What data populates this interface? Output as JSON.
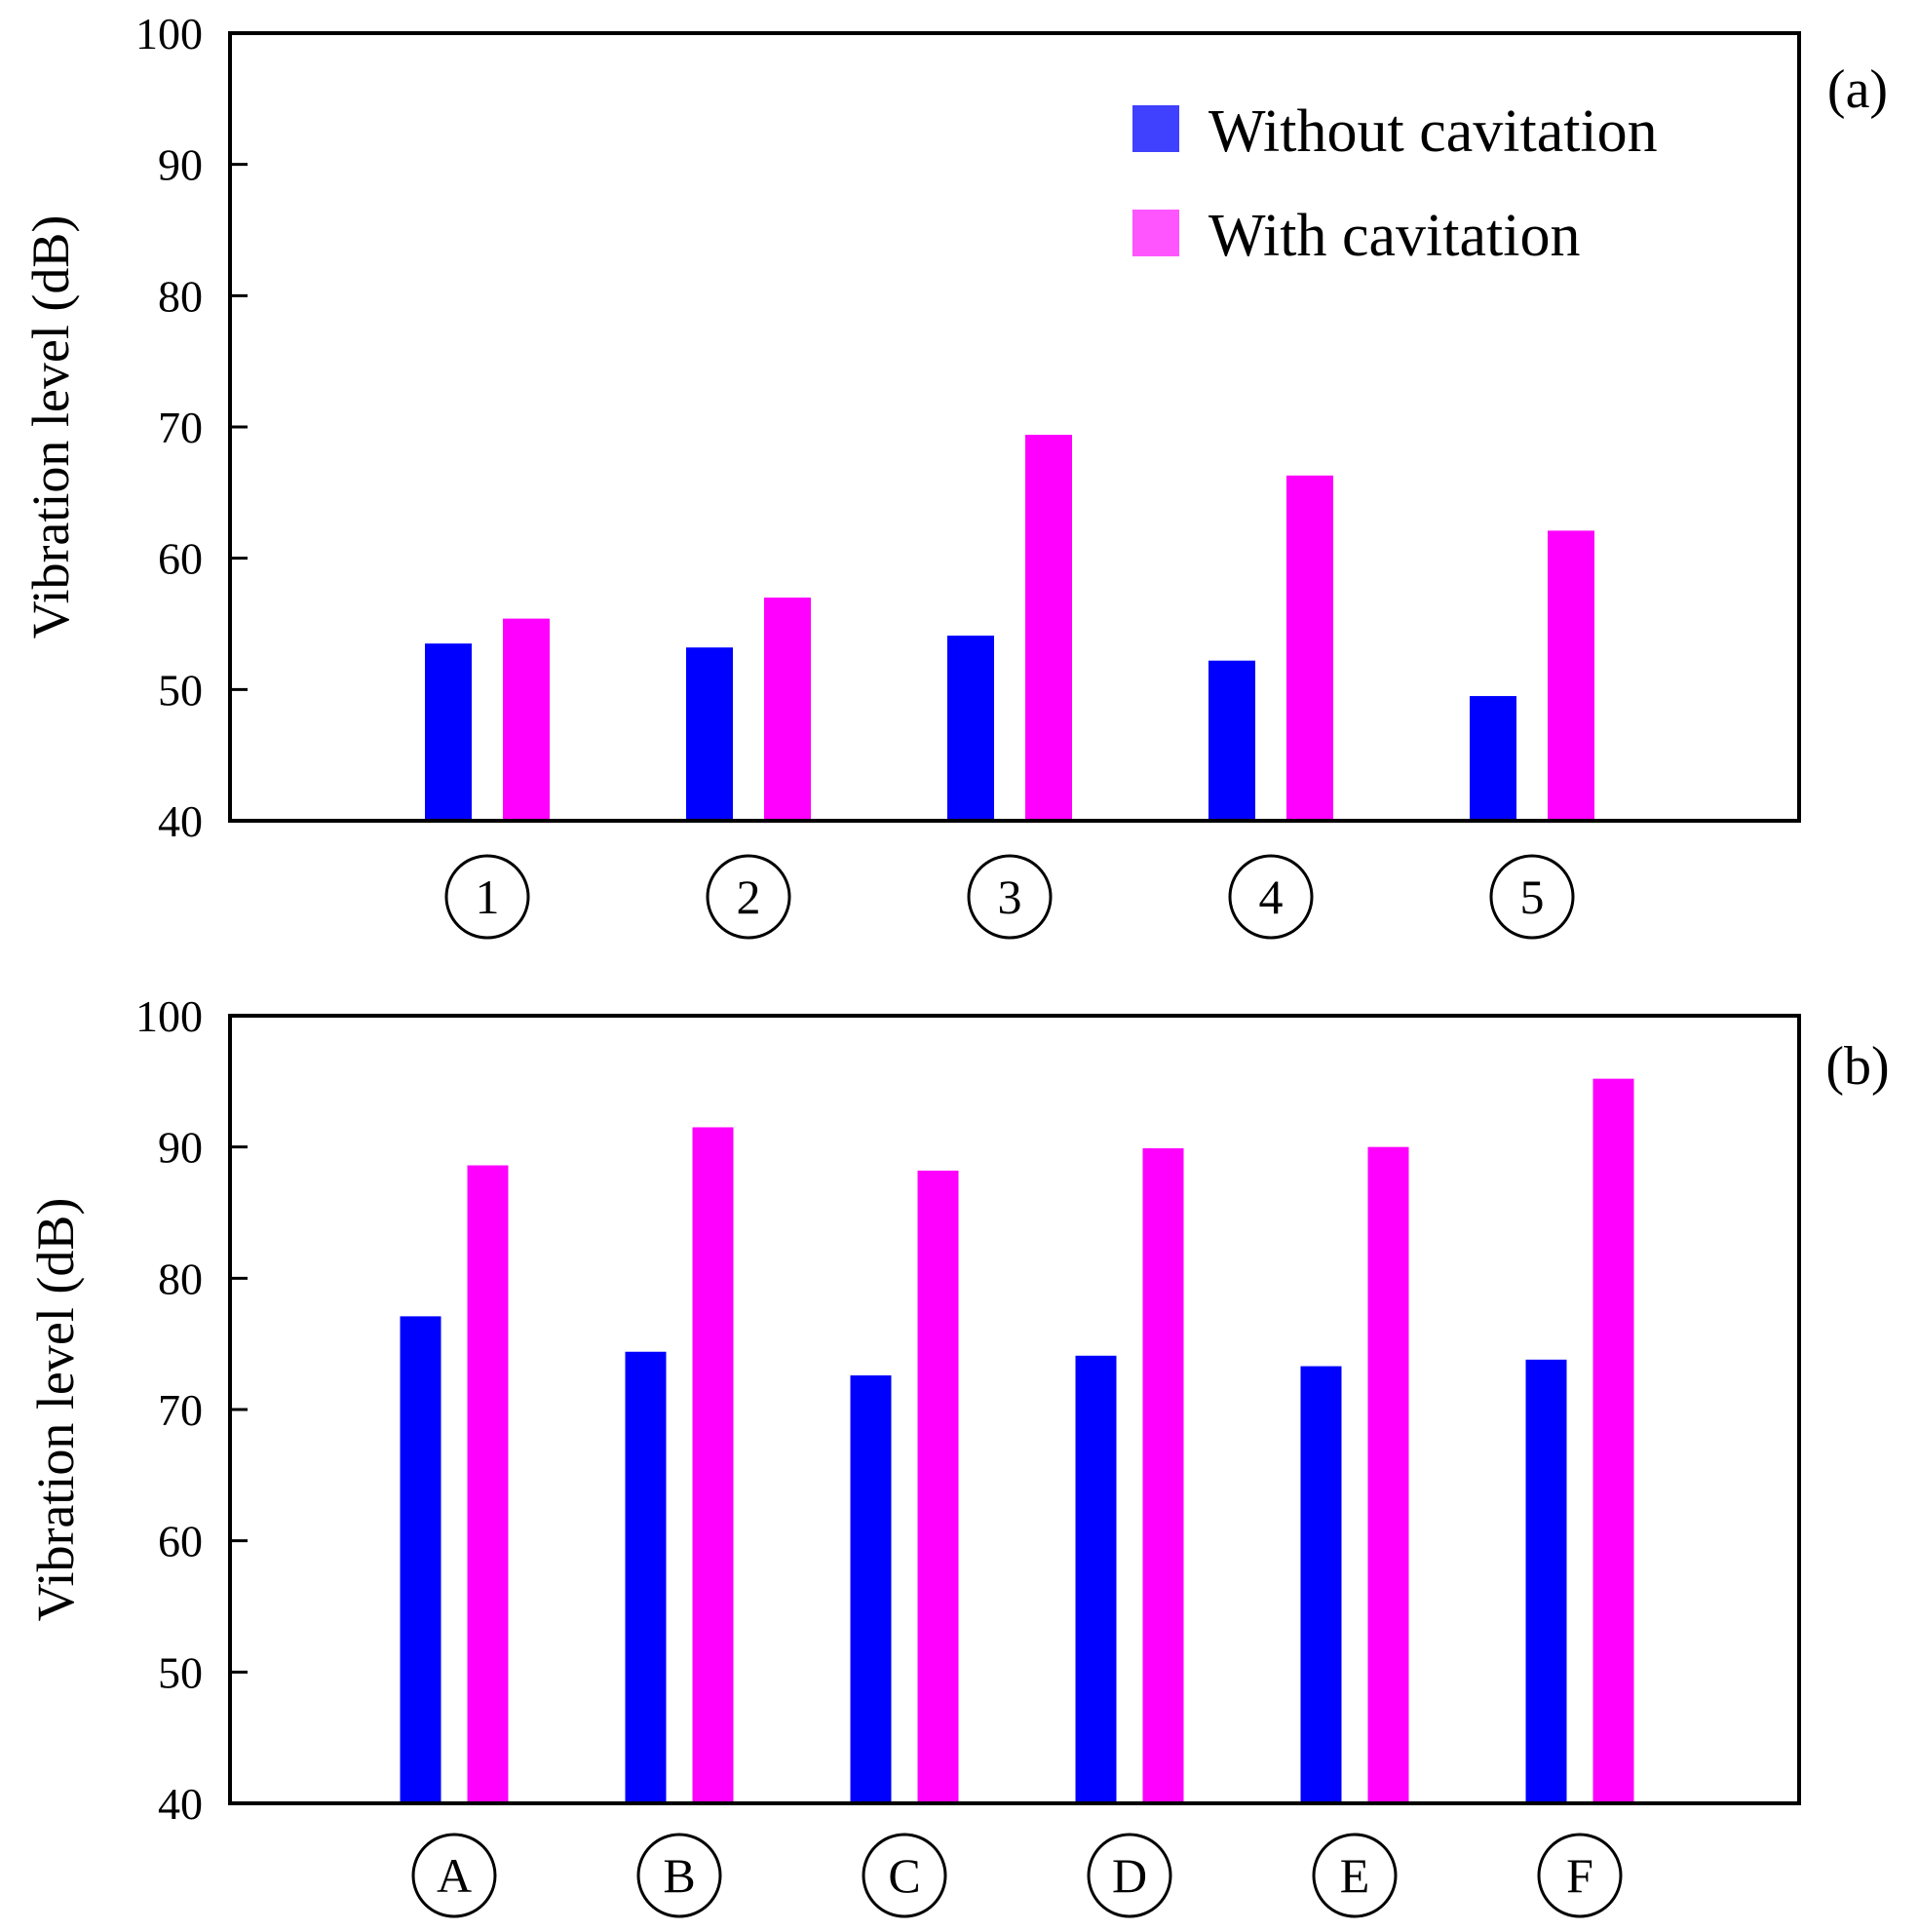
{
  "chart_data": [
    {
      "type": "bar",
      "panel_label": "(a)",
      "categories": [
        "1",
        "2",
        "3",
        "4",
        "5"
      ],
      "series": [
        {
          "name": "Without cavitation",
          "color": "#0000ff",
          "values": [
            53.5,
            53.2,
            54.1,
            52.2,
            49.5
          ]
        },
        {
          "name": "With cavitation",
          "color": "#ff00ff",
          "values": [
            55.4,
            57.0,
            69.4,
            66.3,
            62.1
          ]
        }
      ],
      "ylabel": "Vibration level (dB)",
      "xlabel": "",
      "ylim": [
        40,
        100
      ],
      "yticks": [
        40,
        50,
        60,
        70,
        80,
        90,
        100
      ],
      "grid": false,
      "legend": "top-right"
    },
    {
      "type": "bar",
      "panel_label": "(b)",
      "categories": [
        "A",
        "B",
        "C",
        "D",
        "E",
        "F"
      ],
      "series": [
        {
          "name": "Without cavitation",
          "color": "#0000ff",
          "values": [
            77.1,
            74.4,
            72.6,
            74.1,
            73.3,
            73.8
          ]
        },
        {
          "name": "With cavitation",
          "color": "#ff00ff",
          "values": [
            88.6,
            91.5,
            88.2,
            89.9,
            90.0,
            95.2
          ]
        }
      ],
      "ylabel": "Vibration level (dB)",
      "xlabel": "",
      "ylim": [
        40,
        100
      ],
      "yticks": [
        40,
        50,
        60,
        70,
        80,
        90,
        100
      ],
      "grid": false,
      "legend": "none"
    }
  ],
  "legend": {
    "entries": [
      {
        "label": "Without cavitation",
        "color": "#4040ff"
      },
      {
        "label": "With cavitation",
        "color": "#ff55ff"
      }
    ]
  }
}
